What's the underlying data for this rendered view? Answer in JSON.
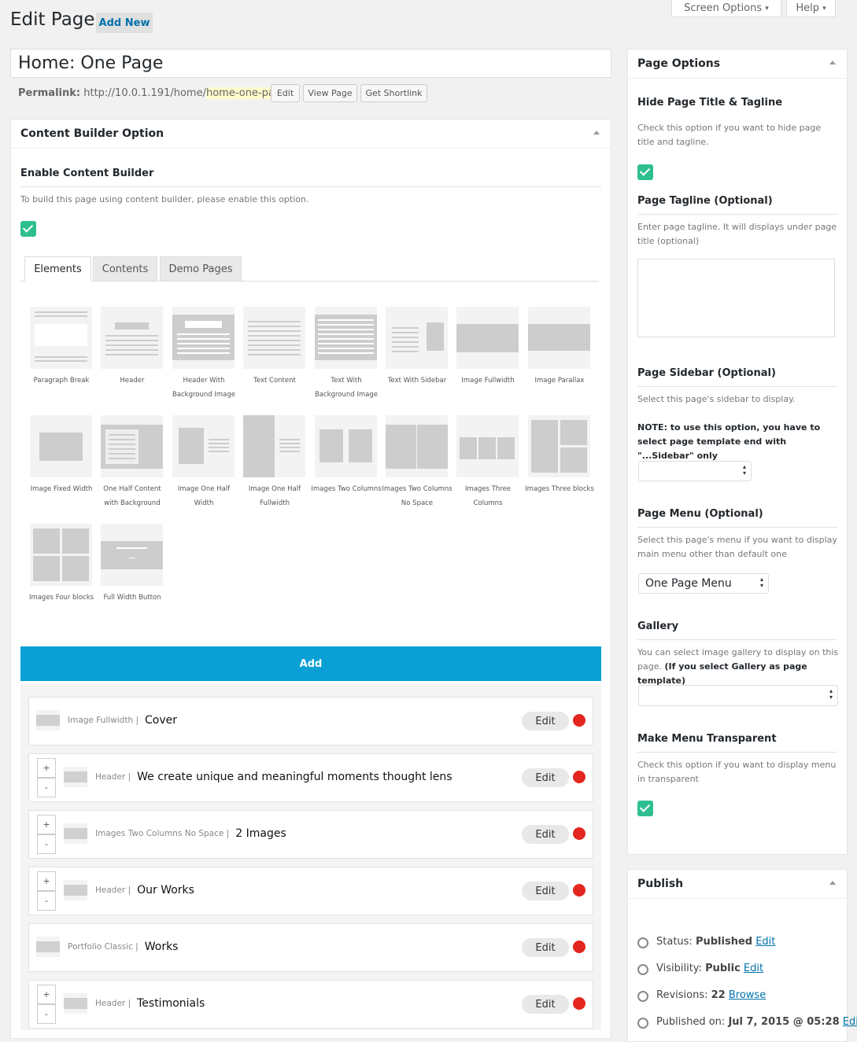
{
  "header": {
    "title": "Edit Page",
    "add_new": "Add New",
    "screen_options": "Screen Options",
    "help": "Help"
  },
  "post_title": "Home: One Page",
  "permalink": {
    "label": "Permalink:",
    "base": "http://10.0.1.191/home/",
    "slug": "home-one-page",
    "trail": "/",
    "buttons": [
      "Edit",
      "View Page",
      "Get Shortlink"
    ]
  },
  "content_builder": {
    "title": "Content Builder Option",
    "enable_label": "Enable Content Builder",
    "description": "To build this page using content builder, please enable this option.",
    "tabs": [
      "Elements",
      "Contents",
      "Demo Pages"
    ],
    "elements": [
      "Paragraph Break",
      "Header",
      "Header With Background Image",
      "Text Content",
      "Text With Background Image",
      "Text With Sidebar",
      "Image Fullwidth",
      "Image Parallax",
      "Image Fixed Width",
      "One Half Content with Background",
      "Image One Half Width",
      "Image One Half Fullwidth",
      "Images Two Columns",
      "Images Two Columns No Space",
      "Images Three Columns",
      "Images Three blocks",
      "Images Four blocks",
      "Full Width Button"
    ],
    "add_button": "Add",
    "controls": [
      "+",
      "-"
    ],
    "edit_button": "Edit",
    "items": [
      {
        "type": "Image Fullwidth |",
        "title": "Cover"
      },
      {
        "type": "Header |",
        "title": "We create unique and meaningful moments thought lens"
      },
      {
        "type": "Images Two Columns No Space |",
        "title": "2 Images"
      },
      {
        "type": "Header |",
        "title": "Our Works"
      },
      {
        "type": "Portfolio Classic |",
        "title": "Works"
      },
      {
        "type": "Header |",
        "title": "Testimonials"
      }
    ]
  },
  "page_options": {
    "title": "Page Options",
    "hide_title": {
      "heading": "Hide Page Title & Tagline",
      "description": "Check this option if you want to hide page title and tagline."
    },
    "tagline": {
      "heading": "Page Tagline (Optional)",
      "description": "Enter page tagline. It will displays under page title (optional)"
    },
    "sidebar": {
      "heading": "Page Sidebar (Optional)",
      "description": "Select this page's sidebar to display.",
      "note": "NOTE: to use this option, you have to select page template end with \"...Sidebar\" only"
    },
    "menu": {
      "heading": "Page Menu (Optional)",
      "description": "Select this page's menu if you want to display main menu other than default one",
      "selected": "One Page Menu"
    },
    "gallery": {
      "heading": "Gallery",
      "description": "You can select image gallery to display on this page.",
      "note": "(If you select Gallery as page template)"
    },
    "transparent": {
      "heading": "Make Menu Transparent",
      "description": "Check this option if you want to display menu in transparent"
    }
  },
  "publish": {
    "title": "Publish",
    "rows": [
      {
        "label": "Status:",
        "value": "Published",
        "link": "Edit"
      },
      {
        "label": "Visibility:",
        "value": "Public",
        "link": "Edit"
      },
      {
        "label": "Revisions:",
        "value": "22",
        "link": "Browse"
      },
      {
        "label": "Published on:",
        "value": "Jul 7, 2015 @ 05:28",
        "link": "Edit"
      }
    ]
  }
}
